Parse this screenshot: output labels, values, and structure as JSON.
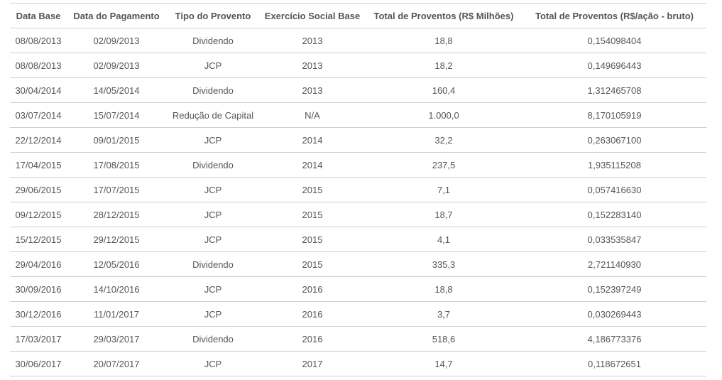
{
  "table": {
    "headers": [
      "Data Base",
      "Data do Pagamento",
      "Tipo do Provento",
      "Exercício Social Base",
      "Total de Proventos (R$ Milhões)",
      "Total de Proventos (R$/ação - bruto)"
    ],
    "rows": [
      [
        "08/08/2013",
        "02/09/2013",
        "Dividendo",
        "2013",
        "18,8",
        "0,154098404"
      ],
      [
        "08/08/2013",
        "02/09/2013",
        "JCP",
        "2013",
        "18,2",
        "0,149696443"
      ],
      [
        "30/04/2014",
        "14/05/2014",
        "Dividendo",
        "2013",
        "160,4",
        "1,312465708"
      ],
      [
        "03/07/2014",
        "15/07/2014",
        "Redução de Capital",
        "N/A",
        "1.000,0",
        "8,170105919"
      ],
      [
        "22/12/2014",
        "09/01/2015",
        "JCP",
        "2014",
        "32,2",
        "0,263067100"
      ],
      [
        "17/04/2015",
        "17/08/2015",
        "Dividendo",
        "2014",
        "237,5",
        "1,935115208"
      ],
      [
        "29/06/2015",
        "17/07/2015",
        "JCP",
        "2015",
        "7,1",
        "0,057416630"
      ],
      [
        "09/12/2015",
        "28/12/2015",
        "JCP",
        "2015",
        "18,7",
        "0,152283140"
      ],
      [
        "15/12/2015",
        "29/12/2015",
        "JCP",
        "2015",
        "4,1",
        "0,033535847"
      ],
      [
        "29/04/2016",
        "12/05/2016",
        "Dividendo",
        "2015",
        "335,3",
        "2,721140930"
      ],
      [
        "30/09/2016",
        "14/10/2016",
        "JCP",
        "2016",
        "18,8",
        "0,152397249"
      ],
      [
        "30/12/2016",
        "11/01/2017",
        "JCP",
        "2016",
        "3,7",
        "0,030269443"
      ],
      [
        "17/03/2017",
        "29/03/2017",
        "Dividendo",
        "2016",
        "518,6",
        "4,186773376"
      ],
      [
        "30/06/2017",
        "20/07/2017",
        "JCP",
        "2017",
        "14,7",
        "0,118672651"
      ]
    ]
  },
  "colors": {
    "text": "#555555",
    "border": "#cfcfcf",
    "background": "#ffffff"
  }
}
